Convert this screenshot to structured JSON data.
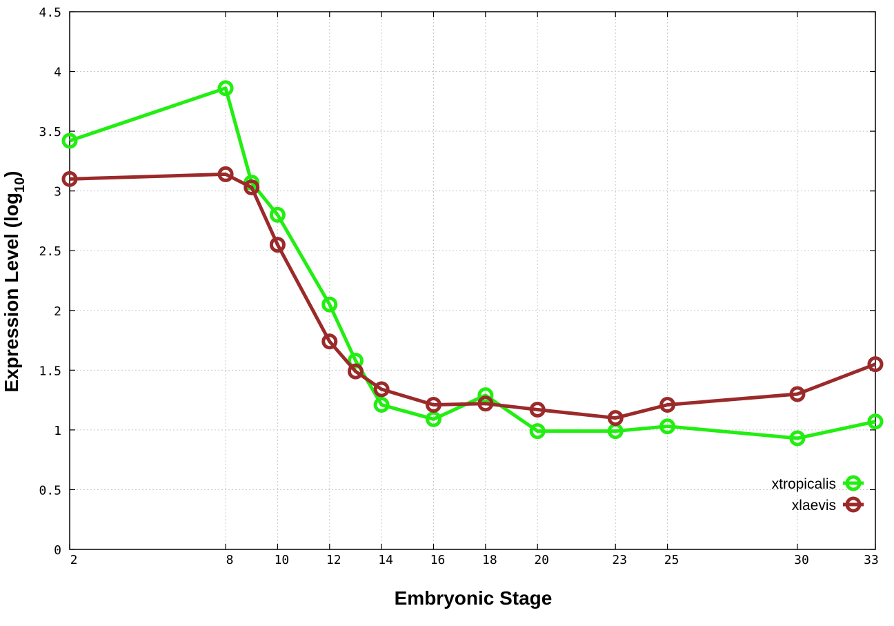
{
  "chart_data": {
    "type": "line",
    "title": "",
    "xlabel": "Embryonic Stage",
    "ylabel_main": "Expression Level (log",
    "ylabel_sub": "10",
    "ylabel_close": ")",
    "x_ticks": [
      2,
      8,
      10,
      12,
      14,
      16,
      18,
      20,
      23,
      25,
      30,
      33
    ],
    "x_tick_labels": [
      "2",
      "8",
      "10",
      "12",
      "14",
      "16",
      "18",
      "20",
      "23",
      "25",
      "30",
      "33"
    ],
    "y_ticks": [
      0,
      0.5,
      1,
      1.5,
      2,
      2.5,
      3,
      3.5,
      4,
      4.5
    ],
    "y_tick_labels": [
      "0",
      "0.5",
      "1",
      "1.5",
      "2",
      "2.5",
      "3",
      "3.5",
      "4",
      "4.5"
    ],
    "ylim": [
      0,
      4.5
    ],
    "grid": true,
    "legend_position": "bottom-right",
    "x": [
      2,
      8,
      9,
      10,
      12,
      13,
      14,
      16,
      18,
      20,
      23,
      25,
      30,
      33
    ],
    "series": [
      {
        "name": "xtropicalis",
        "color": "#22ee11",
        "values": [
          3.42,
          3.86,
          3.07,
          2.8,
          2.05,
          1.58,
          1.21,
          1.09,
          1.29,
          0.99,
          0.99,
          1.03,
          0.93,
          1.07
        ]
      },
      {
        "name": "xlaevis",
        "color": "#9b2a2a",
        "values": [
          3.1,
          3.14,
          3.03,
          2.55,
          1.74,
          1.49,
          1.34,
          1.21,
          1.22,
          1.17,
          1.1,
          1.21,
          1.3,
          1.55
        ]
      }
    ]
  }
}
